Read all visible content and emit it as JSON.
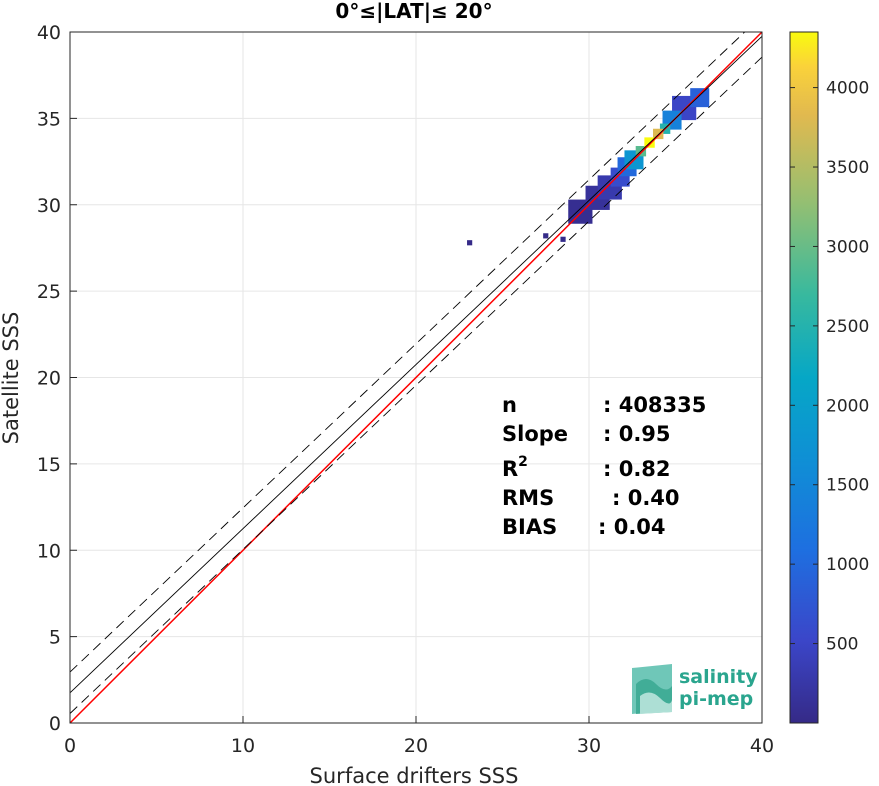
{
  "chart_data": {
    "type": "heatmap",
    "title": "0°≤|LAT|≤ 20°",
    "xlabel": "Surface drifters SSS",
    "ylabel": "Satellite SSS",
    "xlim": [
      0,
      40
    ],
    "ylim": [
      0,
      40
    ],
    "xticks": [
      0,
      10,
      20,
      30,
      40
    ],
    "yticks": [
      0,
      5,
      10,
      15,
      20,
      25,
      30,
      35,
      40
    ],
    "grid": true,
    "colorbar": {
      "colormap": "parula",
      "range": [
        0,
        4350
      ],
      "ticks": [
        500,
        1000,
        1500,
        2000,
        2500,
        3000,
        3500,
        4000
      ]
    },
    "reference_lines": [
      {
        "label": "1:1",
        "slope": 1.0,
        "intercept": 0,
        "color": "#ff0000",
        "style": "solid"
      },
      {
        "label": "fit",
        "slope": 0.95,
        "intercept": 1.75,
        "color": "#000000",
        "style": "solid"
      },
      {
        "label": "fit +",
        "slope": 0.95,
        "intercept": 2.95,
        "color": "#000000",
        "style": "dashed"
      },
      {
        "label": "fit -",
        "slope": 0.95,
        "intercept": 0.55,
        "color": "#000000",
        "style": "dashed"
      }
    ],
    "density_cells": [
      {
        "x": 33.5,
        "y": 33.6,
        "count": 4350
      },
      {
        "x": 34.0,
        "y": 34.1,
        "count": 3800
      },
      {
        "x": 33.0,
        "y": 33.1,
        "count": 2900
      },
      {
        "x": 34.4,
        "y": 34.4,
        "count": 2500
      },
      {
        "x": 32.6,
        "y": 32.6,
        "count": 1800
      },
      {
        "x": 34.8,
        "y": 34.9,
        "count": 1400
      },
      {
        "x": 32.2,
        "y": 32.2,
        "count": 1000
      },
      {
        "x": 36.4,
        "y": 36.2,
        "count": 900
      },
      {
        "x": 31.8,
        "y": 31.6,
        "count": 600
      },
      {
        "x": 35.5,
        "y": 35.6,
        "count": 500
      },
      {
        "x": 31.2,
        "y": 31.0,
        "count": 300
      },
      {
        "x": 30.5,
        "y": 30.4,
        "count": 150
      },
      {
        "x": 29.5,
        "y": 29.6,
        "count": 80
      },
      {
        "x": 28.5,
        "y": 28.0,
        "count": 30
      },
      {
        "x": 27.5,
        "y": 28.2,
        "count": 10
      },
      {
        "x": 23.1,
        "y": 27.8,
        "count": 5
      }
    ],
    "stats": [
      {
        "key": "n",
        "value": ": 408335"
      },
      {
        "key": "Slope",
        "value": ": 0.95"
      },
      {
        "key": "R2",
        "value": ": 0.82"
      },
      {
        "key": "RMS",
        "value": ": 0.40"
      },
      {
        "key": "BIAS",
        "value": ": 0.04"
      }
    ]
  },
  "logo": {
    "line1": "salinity",
    "line2": "pi-mep"
  }
}
